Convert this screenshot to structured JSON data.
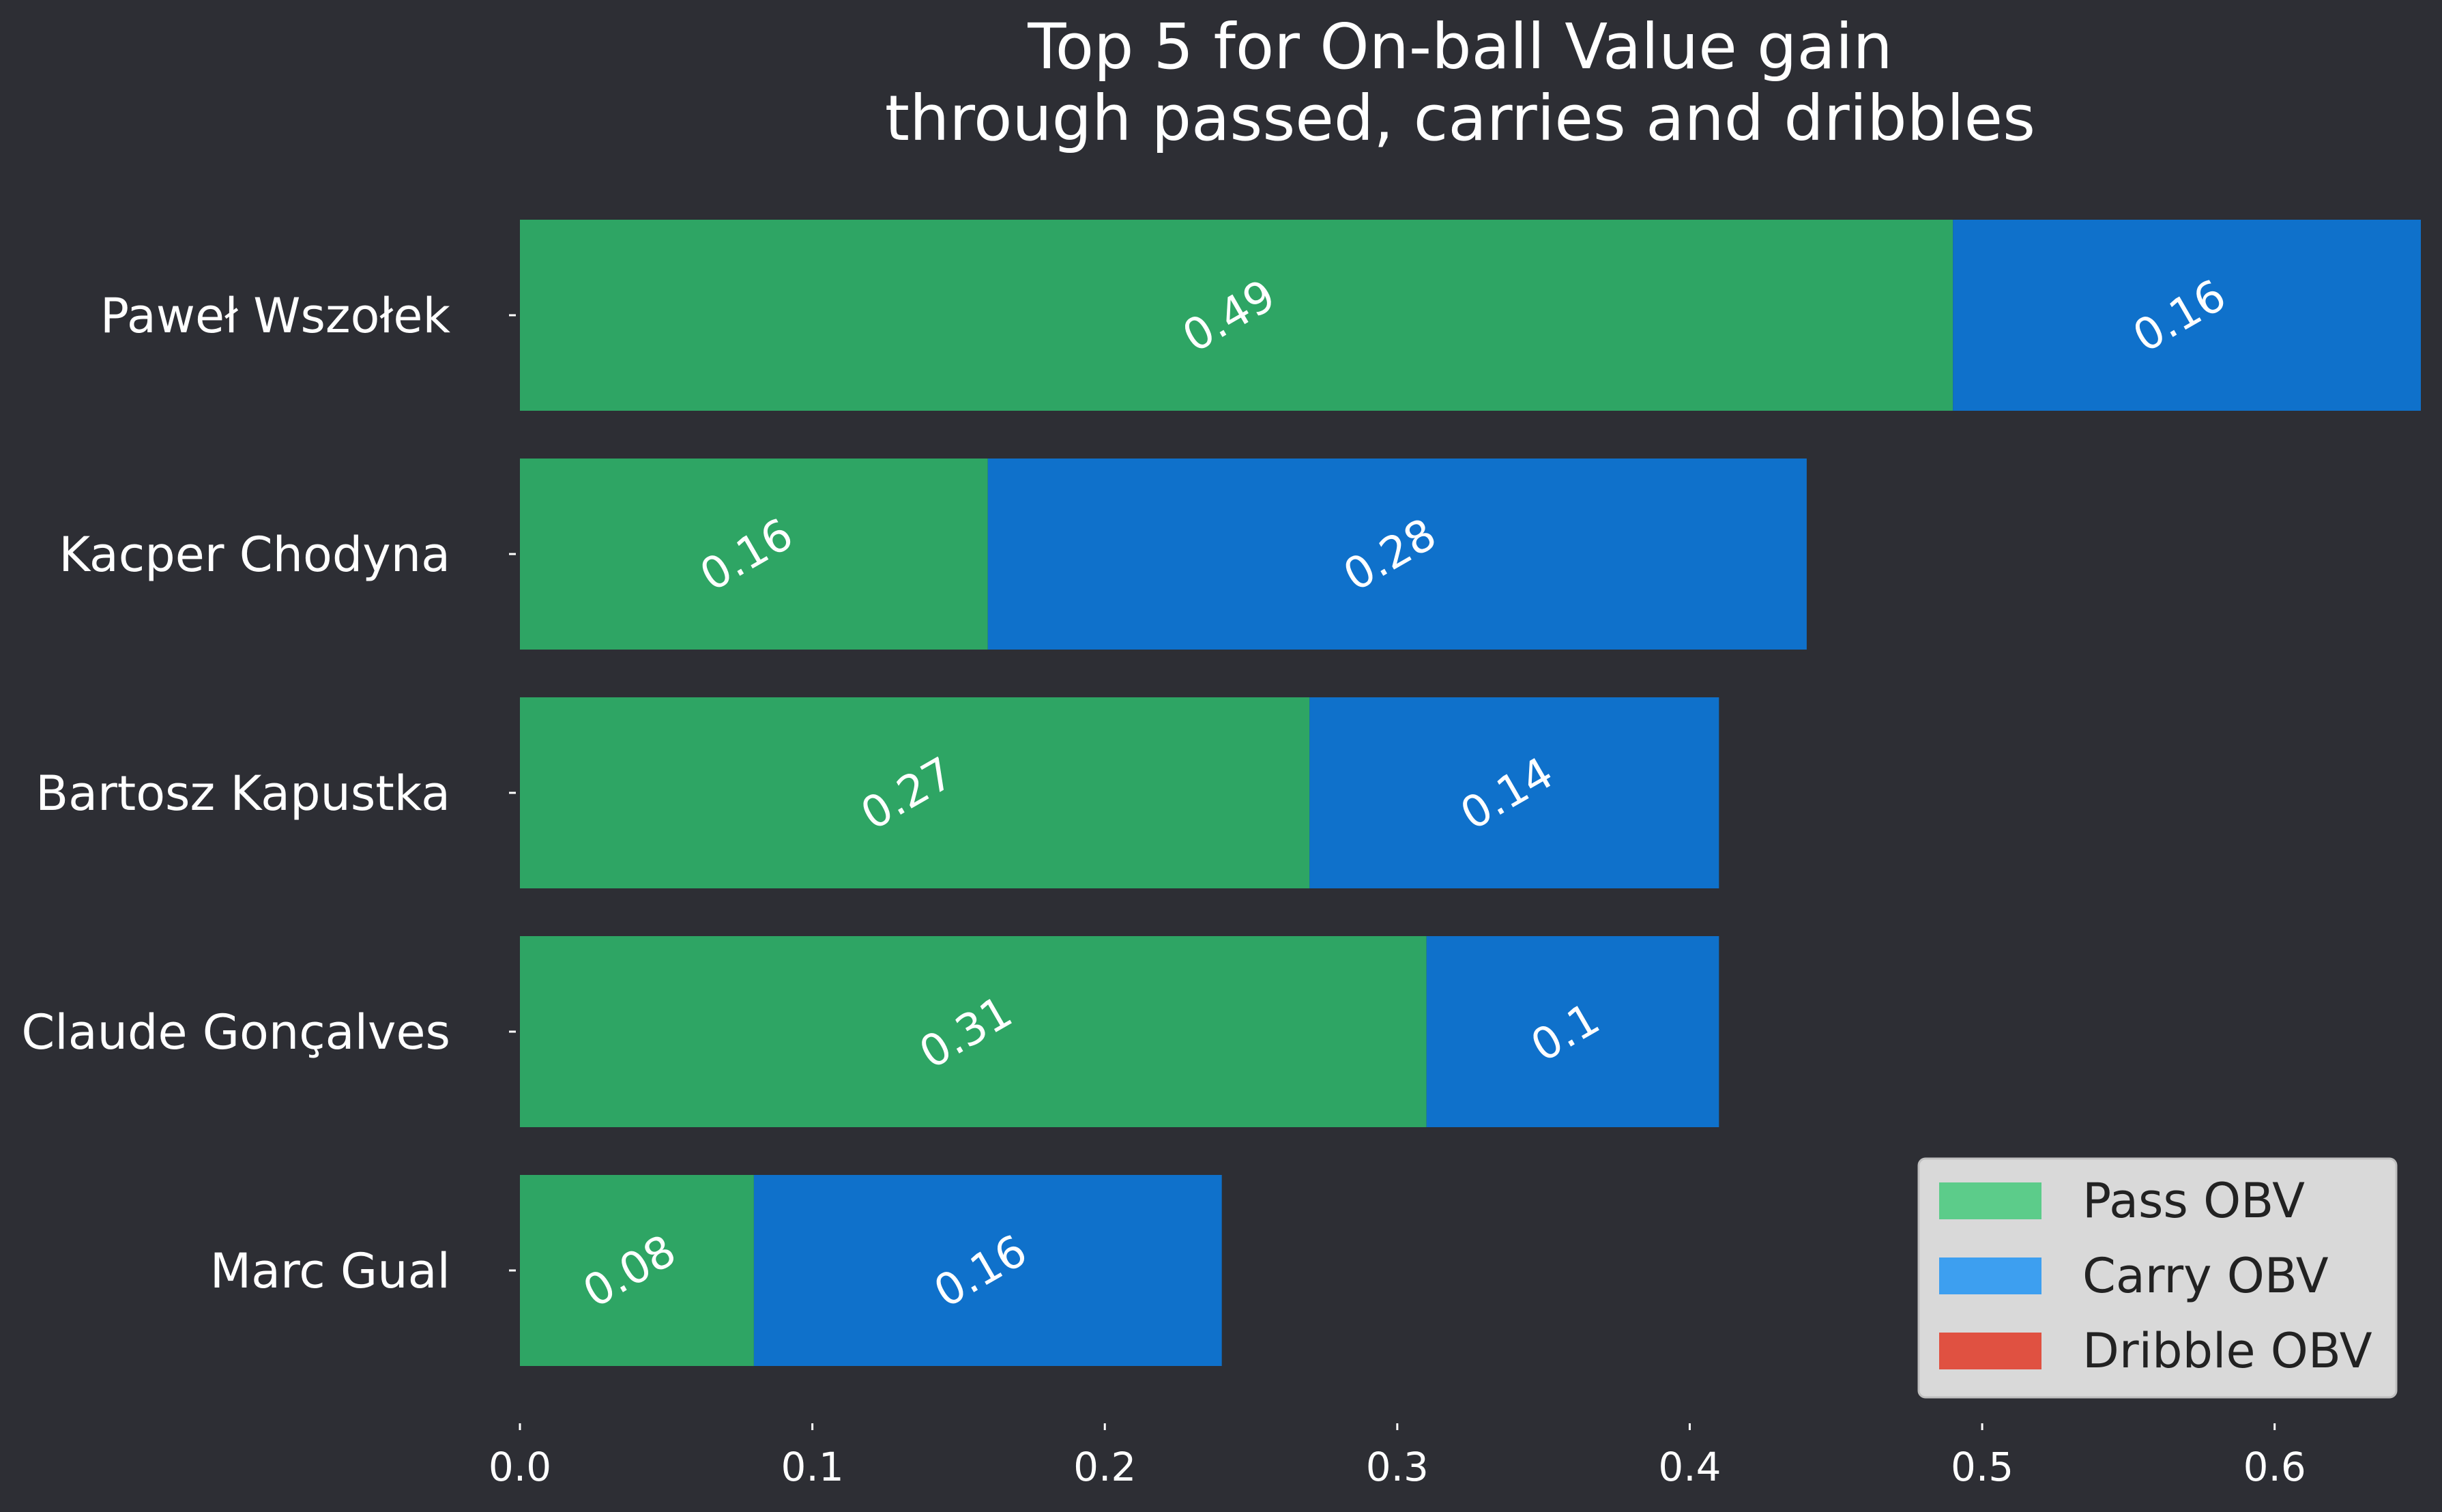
{
  "chart_data": {
    "type": "bar",
    "orientation": "horizontal",
    "stacked": true,
    "title": "Top 5 for On-ball Value gain\nthrough passed, carries and dribbles",
    "categories": [
      "Paweł Wszołek",
      "Kacper Chodyna",
      "Bartosz Kapustka",
      "Claude Gonçalves",
      "Marc Gual"
    ],
    "series": [
      {
        "name": "Pass OBV",
        "color": "#2ea564",
        "values": [
          0.49,
          0.16,
          0.27,
          0.31,
          0.08
        ]
      },
      {
        "name": "Carry OBV",
        "color": "#0f71cb",
        "values": [
          0.16,
          0.28,
          0.14,
          0.1,
          0.16
        ]
      },
      {
        "name": "Dribble OBV",
        "color": "#e05141",
        "values": [
          0,
          0,
          0,
          0,
          0
        ]
      }
    ],
    "xlim": [
      0,
      0.65
    ],
    "xticks": [
      "0.0",
      "0.1",
      "0.2",
      "0.3",
      "0.4",
      "0.5",
      "0.6"
    ],
    "grid": false,
    "legend": {
      "position": "bottom-right",
      "entries": [
        {
          "label": "Pass OBV",
          "color": "#5ccc8a"
        },
        {
          "label": "Carry OBV",
          "color": "#3d9ff0"
        },
        {
          "label": "Dribble OBV",
          "color": "#e05141"
        }
      ]
    },
    "background": "#2d2e34"
  }
}
